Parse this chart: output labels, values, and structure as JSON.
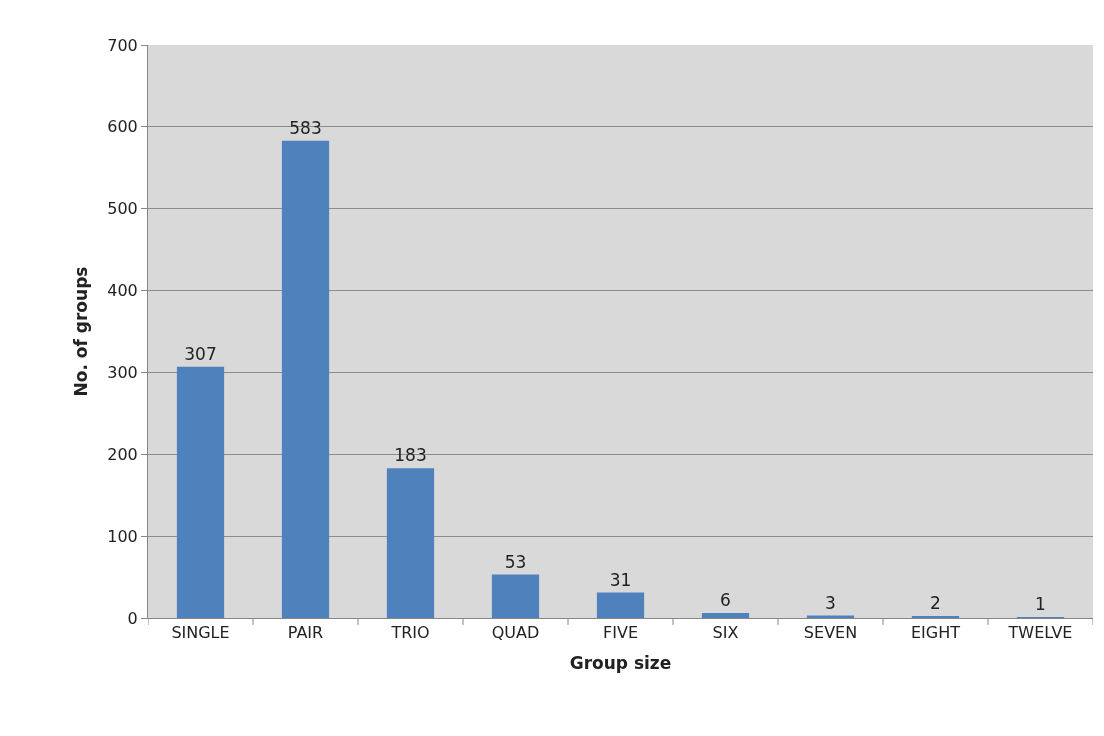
{
  "chart_data": {
    "type": "bar",
    "xlabel": "Group size",
    "ylabel": "No. of groups",
    "categories": [
      "SINGLE",
      "PAIR",
      "TRIO",
      "QUAD",
      "FIVE",
      "SIX",
      "SEVEN",
      "EIGHT",
      "TWELVE"
    ],
    "values": [
      307,
      583,
      183,
      53,
      31,
      6,
      3,
      2,
      1
    ],
    "color": "#4f81bd",
    "ylim": [
      0,
      700
    ],
    "yticks": [
      0,
      100,
      200,
      300,
      400,
      500,
      600,
      700
    ],
    "grid": "y",
    "data_labels": true,
    "legend": false
  }
}
